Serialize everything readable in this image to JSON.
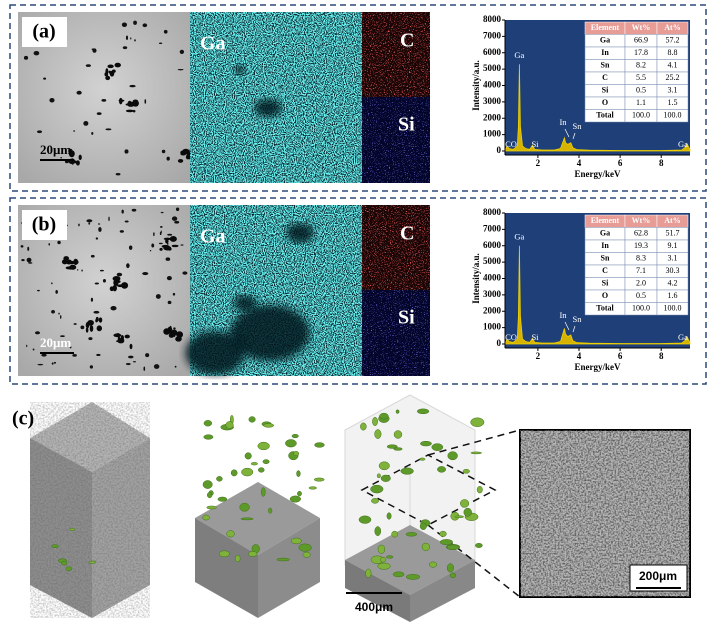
{
  "panels": [
    {
      "label": "(a)",
      "maps": [
        "Ga",
        "C",
        "Si"
      ],
      "scale_bar": "20μm",
      "spectrum": {
        "type": "area",
        "y_label": "Intensity/a.u.",
        "x_label": "Energy/keV",
        "x": [
          0.4,
          0.5,
          0.6,
          0.8,
          1.0,
          1.05,
          1.1,
          1.15,
          1.25,
          1.4,
          1.6,
          1.74,
          1.85,
          2.2,
          2.8,
          3.1,
          3.29,
          3.35,
          3.45,
          3.6,
          3.7,
          3.9,
          4.5,
          6,
          8,
          9.0,
          9.15,
          9.25,
          9.35,
          9.4
        ],
        "values": [
          0,
          300,
          150,
          100,
          300,
          1500,
          5300,
          1500,
          300,
          150,
          100,
          350,
          100,
          60,
          60,
          150,
          800,
          500,
          400,
          500,
          200,
          80,
          50,
          30,
          30,
          60,
          200,
          450,
          200,
          100
        ],
        "xlim": [
          0.4,
          9.4
        ],
        "ylim": [
          0,
          8000
        ],
        "xticks": [
          2,
          4,
          6,
          8
        ],
        "yticks": [
          0,
          1000,
          2000,
          3000,
          4000,
          5000,
          6000,
          7000,
          8000
        ],
        "color": "#d6b300",
        "background": "#1f3f78",
        "peak_labels": [
          "CO",
          "Si",
          "Ga",
          "In",
          "Sn",
          "Ga"
        ]
      },
      "table": {
        "header": [
          "Element",
          "Wt%",
          "At%"
        ],
        "rows": [
          [
            "Ga",
            "66.9",
            "57.2"
          ],
          [
            "In",
            "17.8",
            "8.8"
          ],
          [
            "Sn",
            "8.2",
            "4.1"
          ],
          [
            "C",
            "5.5",
            "25.2"
          ],
          [
            "Si",
            "0.5",
            "3.1"
          ],
          [
            "O",
            "1.1",
            "1.5"
          ],
          [
            "Total",
            "100.0",
            "100.0"
          ]
        ]
      }
    },
    {
      "label": "(b)",
      "maps": [
        "Ga",
        "C",
        "Si"
      ],
      "scale_bar": "20μm",
      "spectrum": {
        "type": "area",
        "y_label": "Intensity/a.u.",
        "x_label": "Energy/keV",
        "x": [
          0.4,
          0.5,
          0.6,
          0.8,
          1.0,
          1.05,
          1.1,
          1.15,
          1.25,
          1.4,
          1.6,
          1.74,
          1.85,
          2.2,
          2.8,
          3.1,
          3.29,
          3.35,
          3.45,
          3.6,
          3.7,
          3.9,
          4.5,
          6,
          8,
          9.0,
          9.15,
          9.25,
          9.35,
          9.4
        ],
        "values": [
          0,
          300,
          150,
          100,
          300,
          1700,
          6000,
          1700,
          300,
          150,
          100,
          350,
          100,
          60,
          60,
          150,
          950,
          600,
          450,
          550,
          200,
          80,
          50,
          30,
          30,
          60,
          200,
          450,
          200,
          100
        ],
        "xlim": [
          0.4,
          9.4
        ],
        "ylim": [
          0,
          8000
        ],
        "xticks": [
          2,
          4,
          6,
          8
        ],
        "yticks": [
          0,
          1000,
          2000,
          3000,
          4000,
          5000,
          6000,
          7000,
          8000
        ],
        "color": "#d6b300",
        "background": "#1f3f78",
        "peak_labels": [
          "CO",
          "Si",
          "Ga",
          "In",
          "Sn",
          "Ga"
        ]
      },
      "table": {
        "header": [
          "Element",
          "Wt%",
          "At%"
        ],
        "rows": [
          [
            "Ga",
            "62.8",
            "51.7"
          ],
          [
            "In",
            "19.3",
            "9.1"
          ],
          [
            "Sn",
            "8.3",
            "3.1"
          ],
          [
            "C",
            "7.1",
            "30.3"
          ],
          [
            "Si",
            "2.0",
            "4.2"
          ],
          [
            "O",
            "0.5",
            "1.6"
          ],
          [
            "Total",
            "100.0",
            "100.0"
          ]
        ]
      }
    }
  ],
  "panel_c": {
    "label": "(c)",
    "scale_bars": [
      "400μm",
      "200μm"
    ]
  }
}
